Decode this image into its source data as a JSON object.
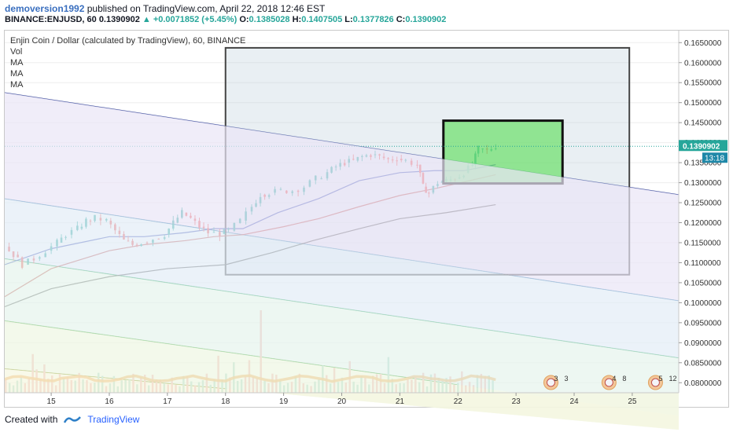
{
  "header": {
    "author": "demoversion1992",
    "published": " published on TradingView.com, April 22, 2018 12:46 EST"
  },
  "ohlc_line": {
    "symbol": "BINANCE:ENJUSD, 60",
    "last": "0.1390902",
    "change": "+0.0071852 (+5.45%)",
    "o_label": "O:",
    "o": "0.1385028",
    "h_label": "H:",
    "h": "0.1407505",
    "l_label": "L:",
    "l": "0.1377826",
    "c_label": "C:",
    "c": "0.1390902"
  },
  "legend": {
    "title": "Enjin Coin / Dollar (calculated by TradingView), 60, BINANCE",
    "items": [
      "Vol",
      "MA",
      "MA",
      "MA"
    ]
  },
  "footer": {
    "created_with": "Created with",
    "brand": "TradingView"
  },
  "colors": {
    "up": "#26a69a",
    "down": "#ef5350",
    "ma_fast": "#3f51b5",
    "ma_mid": "#c0504d",
    "ma_slow": "#555555",
    "vol_ma": "#f0a04b",
    "box_fill": "#b7c9d6",
    "green_box": "#72e072",
    "price_tag": "#26a69a",
    "time_tag": "#1e88a8"
  },
  "chart_data": {
    "type": "candlestick",
    "symbol": "BINANCE:ENJUSD",
    "interval": "60",
    "y_ticks": [
      "0.1650000",
      "0.1600000",
      "0.1550000",
      "0.1500000",
      "0.1450000",
      "0.1400000",
      "0.1350000",
      "0.1300000",
      "0.1250000",
      "0.1200000",
      "0.1150000",
      "0.1100000",
      "0.1050000",
      "0.1000000",
      "0.0950000",
      "0.0900000",
      "0.0850000",
      "0.0800000"
    ],
    "y_tick_values": [
      0.165,
      0.16,
      0.155,
      0.15,
      0.145,
      0.14,
      0.135,
      0.13,
      0.125,
      0.12,
      0.115,
      0.11,
      0.105,
      0.1,
      0.095,
      0.09,
      0.085,
      0.08
    ],
    "ylim": [
      0.0775,
      0.168
    ],
    "x_ticks": [
      "15",
      "16",
      "17",
      "18",
      "19",
      "20",
      "21",
      "22",
      "23",
      "24",
      "25"
    ],
    "x_tick_days": [
      15,
      16,
      17,
      18,
      19,
      20,
      21,
      22,
      23,
      24,
      25
    ],
    "xlim": [
      14.2,
      25.8
    ],
    "last_price": "0.1390902",
    "last_price_value": 0.1390902,
    "countdown": "13:18",
    "price_path": [
      [
        14.2,
        0.114
      ],
      [
        14.35,
        0.112
      ],
      [
        14.5,
        0.1095
      ],
      [
        14.7,
        0.111
      ],
      [
        14.9,
        0.113
      ],
      [
        15.1,
        0.115
      ],
      [
        15.25,
        0.117
      ],
      [
        15.45,
        0.1185
      ],
      [
        15.6,
        0.1205
      ],
      [
        15.75,
        0.1212
      ],
      [
        15.95,
        0.1205
      ],
      [
        16.1,
        0.118
      ],
      [
        16.25,
        0.1155
      ],
      [
        16.4,
        0.1145
      ],
      [
        16.55,
        0.115
      ],
      [
        16.75,
        0.116
      ],
      [
        16.95,
        0.117
      ],
      [
        17.1,
        0.12
      ],
      [
        17.25,
        0.1225
      ],
      [
        17.4,
        0.121
      ],
      [
        17.55,
        0.119
      ],
      [
        17.7,
        0.1175
      ],
      [
        17.9,
        0.1172
      ],
      [
        18.05,
        0.118
      ],
      [
        18.25,
        0.1205
      ],
      [
        18.45,
        0.124
      ],
      [
        18.6,
        0.127
      ],
      [
        18.75,
        0.1275
      ],
      [
        18.95,
        0.128
      ],
      [
        19.15,
        0.128
      ],
      [
        19.35,
        0.129
      ],
      [
        19.55,
        0.131
      ],
      [
        19.75,
        0.1325
      ],
      [
        19.9,
        0.134
      ],
      [
        20.05,
        0.135
      ],
      [
        20.2,
        0.1355
      ],
      [
        20.35,
        0.1365
      ],
      [
        20.5,
        0.137
      ],
      [
        20.65,
        0.1365
      ],
      [
        20.8,
        0.1358
      ],
      [
        20.95,
        0.136
      ],
      [
        21.1,
        0.1355
      ],
      [
        21.3,
        0.1345
      ],
      [
        21.4,
        0.129
      ],
      [
        21.5,
        0.1275
      ],
      [
        21.65,
        0.13
      ],
      [
        21.8,
        0.1305
      ],
      [
        21.95,
        0.131
      ],
      [
        22.1,
        0.1325
      ],
      [
        22.25,
        0.1345
      ],
      [
        22.35,
        0.1385
      ],
      [
        22.5,
        0.138
      ],
      [
        22.65,
        0.1392
      ]
    ],
    "moving_averages": [
      {
        "name": "MA",
        "color": "#3f51b5",
        "points": [
          [
            14.2,
            0.1095
          ],
          [
            15.0,
            0.1135
          ],
          [
            16.0,
            0.1165
          ],
          [
            16.6,
            0.1165
          ],
          [
            17.3,
            0.1175
          ],
          [
            17.8,
            0.1185
          ],
          [
            18.3,
            0.1185
          ],
          [
            18.9,
            0.1225
          ],
          [
            19.6,
            0.126
          ],
          [
            20.3,
            0.1305
          ],
          [
            21.0,
            0.1325
          ],
          [
            21.6,
            0.133
          ],
          [
            22.1,
            0.133
          ],
          [
            22.65,
            0.1345
          ]
        ]
      },
      {
        "name": "MA",
        "color": "#c0504d",
        "points": [
          [
            14.2,
            0.1015
          ],
          [
            15.0,
            0.1085
          ],
          [
            16.0,
            0.113
          ],
          [
            16.6,
            0.1145
          ],
          [
            17.3,
            0.1155
          ],
          [
            17.8,
            0.1165
          ],
          [
            18.3,
            0.117
          ],
          [
            19.0,
            0.119
          ],
          [
            19.6,
            0.121
          ],
          [
            20.3,
            0.124
          ],
          [
            21.0,
            0.1268
          ],
          [
            21.6,
            0.1285
          ],
          [
            22.2,
            0.1305
          ],
          [
            22.65,
            0.132
          ]
        ]
      },
      {
        "name": "MA",
        "color": "#555555",
        "points": [
          [
            14.2,
            0.099
          ],
          [
            15.0,
            0.1035
          ],
          [
            16.0,
            0.1065
          ],
          [
            17.0,
            0.1085
          ],
          [
            18.0,
            0.1095
          ],
          [
            18.8,
            0.1125
          ],
          [
            19.5,
            0.1155
          ],
          [
            20.3,
            0.1185
          ],
          [
            21.0,
            0.121
          ],
          [
            21.8,
            0.1225
          ],
          [
            22.65,
            0.1245
          ]
        ]
      }
    ],
    "volume_bars_max": 1.0,
    "channels": [
      {
        "color": "#3a4a9a",
        "from": [
          14.2,
          0.1525
        ],
        "to": [
          25.8,
          0.127
        ]
      },
      {
        "color": "#3b7fb0",
        "from": [
          14.2,
          0.126
        ],
        "to": [
          25.8,
          0.1005
        ]
      },
      {
        "color": "#3aa86f",
        "from": [
          14.2,
          0.111
        ],
        "to": [
          25.8,
          0.0862
        ]
      },
      {
        "color": "#4aa84a",
        "from": [
          14.2,
          0.0955
        ],
        "to": [
          22.0,
          0.0795
        ]
      },
      {
        "color": "#8a9a30",
        "from": [
          14.2,
          0.0835
        ],
        "to": [
          18.0,
          0.0785
        ]
      }
    ],
    "rectangles": [
      {
        "name": "range-box",
        "x": [
          18.0,
          24.95
        ],
        "y": [
          0.107,
          0.1637
        ]
      },
      {
        "name": "target-box",
        "x": [
          21.75,
          23.8
        ],
        "y": [
          0.1298,
          0.1455
        ]
      }
    ],
    "event_markers": [
      {
        "day": 23.6,
        "labels": [
          "3",
          "3"
        ]
      },
      {
        "day": 24.6,
        "labels": [
          "4",
          "8"
        ]
      },
      {
        "day": 25.4,
        "labels": [
          "5",
          "12"
        ]
      }
    ]
  }
}
